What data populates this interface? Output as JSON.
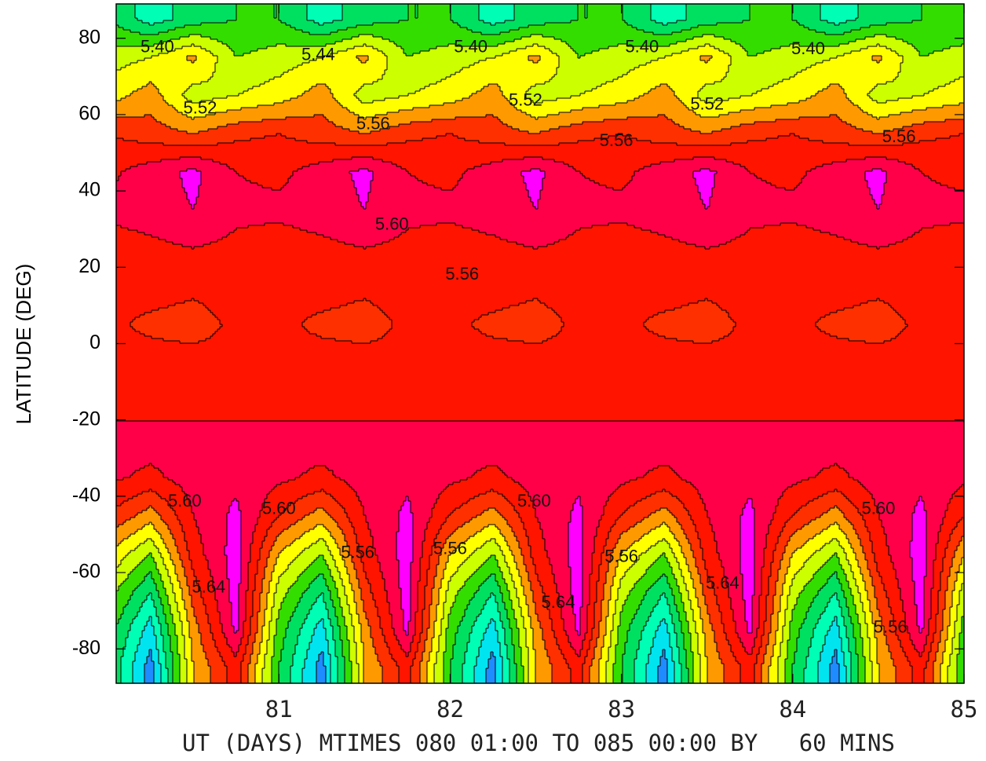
{
  "chart_data": {
    "type": "contour",
    "ylabel": "LATITUDE (DEG)",
    "xlabel": "UT (DAYS) MTIMES 080 01:00 TO 085 00:00 BY   60 MINS",
    "xlim": [
      80.05,
      85
    ],
    "xticks": [
      81,
      82,
      83,
      84,
      85
    ],
    "ylim": [
      -89,
      89
    ],
    "yticks": [
      80,
      60,
      40,
      20,
      0,
      -20,
      -40,
      -60,
      -80
    ],
    "levels": [
      5.24,
      5.28,
      5.32,
      5.36,
      5.4,
      5.44,
      5.48,
      5.52,
      5.56,
      5.6,
      5.64
    ],
    "colors": [
      "#1e8cff",
      "#00e4f0",
      "#00ffb4",
      "#00e060",
      "#33dd00",
      "#ccff00",
      "#ffff00",
      "#ff9900",
      "#ff3000",
      "#ff1400",
      "#ff0048",
      "#ff00ff"
    ],
    "x": [
      80.0,
      80.25,
      80.5,
      80.75,
      81.0,
      81.25,
      81.5,
      81.75,
      82.0,
      82.25,
      82.5,
      82.75,
      83.0,
      83.25,
      83.5,
      83.75,
      84.0,
      84.25,
      84.5,
      84.75,
      85.0
    ],
    "y": [
      85,
      75,
      65,
      55,
      45,
      35,
      25,
      15,
      5,
      -5,
      -15,
      -25,
      -35,
      -45,
      -55,
      -65,
      -75,
      -85
    ],
    "z": [
      [
        5.36,
        5.3,
        5.34,
        5.36,
        5.36,
        5.3,
        5.34,
        5.36,
        5.36,
        5.3,
        5.34,
        5.36,
        5.36,
        5.3,
        5.34,
        5.36,
        5.36,
        5.3,
        5.34,
        5.36,
        5.36
      ],
      [
        5.42,
        5.44,
        5.49,
        5.4,
        5.42,
        5.44,
        5.49,
        5.4,
        5.42,
        5.44,
        5.49,
        5.4,
        5.42,
        5.44,
        5.49,
        5.4,
        5.42,
        5.44,
        5.49,
        5.4,
        5.42
      ],
      [
        5.46,
        5.5,
        5.42,
        5.44,
        5.46,
        5.5,
        5.42,
        5.44,
        5.46,
        5.5,
        5.42,
        5.44,
        5.46,
        5.5,
        5.42,
        5.44,
        5.46,
        5.5,
        5.42,
        5.44,
        5.46
      ],
      [
        5.56,
        5.54,
        5.52,
        5.55,
        5.56,
        5.54,
        5.52,
        5.55,
        5.56,
        5.54,
        5.52,
        5.55,
        5.56,
        5.54,
        5.52,
        5.55,
        5.56,
        5.54,
        5.52,
        5.55,
        5.56
      ],
      [
        5.59,
        5.62,
        5.65,
        5.6,
        5.59,
        5.62,
        5.65,
        5.6,
        5.59,
        5.62,
        5.65,
        5.6,
        5.59,
        5.62,
        5.65,
        5.6,
        5.59,
        5.62,
        5.65,
        5.6,
        5.59
      ],
      [
        5.61,
        5.62,
        5.64,
        5.61,
        5.61,
        5.62,
        5.64,
        5.61,
        5.61,
        5.62,
        5.64,
        5.61,
        5.61,
        5.62,
        5.64,
        5.61,
        5.61,
        5.62,
        5.64,
        5.61,
        5.61
      ],
      [
        5.58,
        5.59,
        5.6,
        5.59,
        5.58,
        5.59,
        5.6,
        5.59,
        5.58,
        5.59,
        5.6,
        5.59,
        5.58,
        5.59,
        5.6,
        5.59,
        5.58,
        5.59,
        5.6,
        5.59,
        5.58
      ],
      [
        5.57,
        5.58,
        5.57,
        5.58,
        5.57,
        5.58,
        5.57,
        5.58,
        5.57,
        5.58,
        5.57,
        5.58,
        5.57,
        5.58,
        5.57,
        5.58,
        5.57,
        5.58,
        5.57,
        5.58,
        5.57
      ],
      [
        5.57,
        5.55,
        5.54,
        5.57,
        5.57,
        5.55,
        5.54,
        5.57,
        5.57,
        5.55,
        5.54,
        5.57,
        5.57,
        5.55,
        5.54,
        5.57,
        5.57,
        5.55,
        5.54,
        5.57,
        5.57
      ],
      [
        5.57,
        5.58,
        5.58,
        5.57,
        5.57,
        5.58,
        5.58,
        5.57,
        5.57,
        5.58,
        5.58,
        5.57,
        5.57,
        5.58,
        5.58,
        5.57,
        5.57,
        5.58,
        5.58,
        5.57,
        5.57
      ],
      [
        5.59,
        5.58,
        5.59,
        5.59,
        5.59,
        5.58,
        5.59,
        5.59,
        5.59,
        5.58,
        5.59,
        5.59,
        5.59,
        5.58,
        5.59,
        5.59,
        5.59,
        5.58,
        5.59,
        5.59,
        5.59
      ],
      [
        5.61,
        5.62,
        5.61,
        5.61,
        5.61,
        5.62,
        5.61,
        5.61,
        5.61,
        5.62,
        5.61,
        5.61,
        5.61,
        5.62,
        5.61,
        5.61,
        5.61,
        5.62,
        5.61,
        5.61,
        5.61
      ],
      [
        5.61,
        5.59,
        5.62,
        5.63,
        5.61,
        5.59,
        5.62,
        5.63,
        5.61,
        5.59,
        5.62,
        5.63,
        5.61,
        5.59,
        5.62,
        5.63,
        5.61,
        5.59,
        5.62,
        5.63,
        5.61
      ],
      [
        5.56,
        5.5,
        5.6,
        5.65,
        5.56,
        5.5,
        5.6,
        5.65,
        5.56,
        5.5,
        5.6,
        5.65,
        5.56,
        5.5,
        5.6,
        5.65,
        5.56,
        5.5,
        5.6,
        5.65,
        5.56
      ],
      [
        5.48,
        5.4,
        5.58,
        5.66,
        5.48,
        5.4,
        5.58,
        5.66,
        5.48,
        5.4,
        5.58,
        5.66,
        5.48,
        5.4,
        5.58,
        5.66,
        5.48,
        5.4,
        5.58,
        5.66,
        5.48
      ],
      [
        5.42,
        5.32,
        5.54,
        5.66,
        5.42,
        5.32,
        5.54,
        5.66,
        5.42,
        5.32,
        5.54,
        5.66,
        5.42,
        5.32,
        5.54,
        5.66,
        5.42,
        5.32,
        5.54,
        5.66,
        5.42
      ],
      [
        5.38,
        5.26,
        5.5,
        5.65,
        5.38,
        5.26,
        5.5,
        5.65,
        5.38,
        5.26,
        5.5,
        5.65,
        5.38,
        5.26,
        5.5,
        5.65,
        5.38,
        5.26,
        5.5,
        5.65,
        5.38
      ],
      [
        5.36,
        5.22,
        5.48,
        5.58,
        5.36,
        5.22,
        5.48,
        5.58,
        5.36,
        5.22,
        5.48,
        5.58,
        5.36,
        5.22,
        5.48,
        5.58,
        5.36,
        5.22,
        5.48,
        5.58,
        5.36
      ]
    ],
    "contour_labels": [
      {
        "value": 5.4,
        "label": "5.40",
        "x": 80.29,
        "y": 77.5
      },
      {
        "value": 5.44,
        "label": "5.44",
        "x": 81.23,
        "y": 75.5
      },
      {
        "value": 5.4,
        "label": "5.40",
        "x": 82.12,
        "y": 77.5
      },
      {
        "value": 5.4,
        "label": "5.40",
        "x": 83.12,
        "y": 77.5
      },
      {
        "value": 5.4,
        "label": "5.40",
        "x": 84.09,
        "y": 77
      },
      {
        "value": 5.52,
        "label": "5.52",
        "x": 80.54,
        "y": 61.5
      },
      {
        "value": 5.56,
        "label": "5.56",
        "x": 81.55,
        "y": 57.4
      },
      {
        "value": 5.52,
        "label": "5.52",
        "x": 82.44,
        "y": 63.5
      },
      {
        "value": 5.56,
        "label": "5.56",
        "x": 82.97,
        "y": 53
      },
      {
        "value": 5.52,
        "label": "5.52",
        "x": 83.5,
        "y": 62.5
      },
      {
        "value": 5.56,
        "label": "5.56",
        "x": 84.62,
        "y": 54
      },
      {
        "value": 5.6,
        "label": "5.60",
        "x": 81.66,
        "y": 31
      },
      {
        "value": 5.56,
        "label": "5.56",
        "x": 82.07,
        "y": 18
      },
      {
        "value": 5.6,
        "label": "5.60",
        "x": 80.45,
        "y": -41.5
      },
      {
        "value": 5.64,
        "label": "5.64",
        "x": 80.59,
        "y": -64
      },
      {
        "value": 5.6,
        "label": "5.60",
        "x": 81.0,
        "y": -43.5
      },
      {
        "value": 5.56,
        "label": "5.56",
        "x": 81.46,
        "y": -55
      },
      {
        "value": 5.56,
        "label": "5.56",
        "x": 82.0,
        "y": -54
      },
      {
        "value": 5.6,
        "label": "5.60",
        "x": 82.49,
        "y": -41.5
      },
      {
        "value": 5.64,
        "label": "5.64",
        "x": 82.63,
        "y": -68
      },
      {
        "value": 5.56,
        "label": "5.56",
        "x": 83.0,
        "y": -56
      },
      {
        "value": 5.64,
        "label": "5.64",
        "x": 83.59,
        "y": -63
      },
      {
        "value": 5.6,
        "label": "5.60",
        "x": 84.5,
        "y": -43.5
      },
      {
        "value": 5.56,
        "label": "5.56",
        "x": 84.57,
        "y": -74.5
      }
    ]
  }
}
